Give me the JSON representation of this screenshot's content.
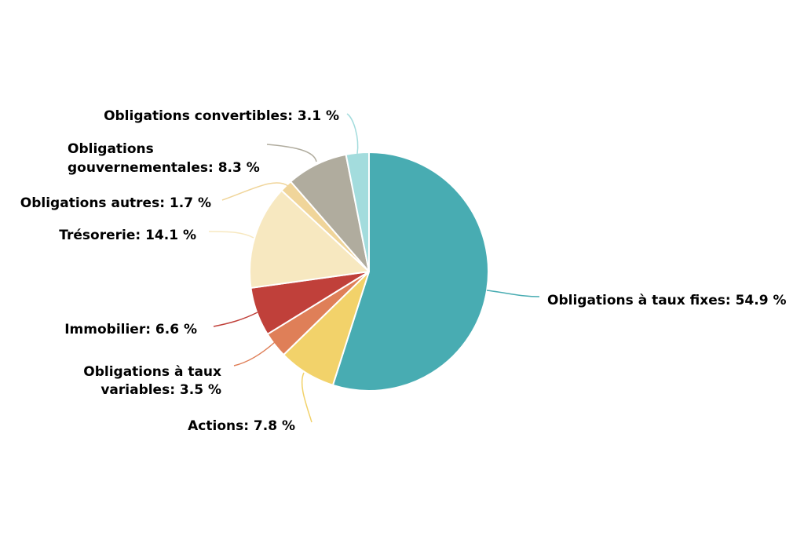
{
  "chart_data": {
    "type": "pie",
    "title": "",
    "slices": [
      {
        "label": "Obligations à taux fixes: 54.9 %",
        "lines": [
          "Obligations à taux fixes: 54.9 %"
        ],
        "value": 54.9,
        "color": "#48acb2"
      },
      {
        "label": "Actions: 7.8 %",
        "lines": [
          "Actions: 7.8 %"
        ],
        "value": 7.8,
        "color": "#f2d26a"
      },
      {
        "label": "Obligations à taux variables: 3.5 %",
        "lines": [
          "Obligations à taux",
          "variables: 3.5 %"
        ],
        "value": 3.5,
        "color": "#df7f58"
      },
      {
        "label": "Immobilier: 6.6 %",
        "lines": [
          "Immobilier: 6.6 %"
        ],
        "value": 6.6,
        "color": "#c0403a"
      },
      {
        "label": "Trésorerie: 14.1 %",
        "lines": [
          "Trésorerie: 14.1 %"
        ],
        "value": 14.1,
        "color": "#f7e8c0"
      },
      {
        "label": "Obligations autres: 1.7 %",
        "lines": [
          "Obligations autres: 1.7 %"
        ],
        "value": 1.7,
        "color": "#f0d59a"
      },
      {
        "label": "Obligations gouvernementales: 8.3 %",
        "lines": [
          "Obligations",
          "gouvernementales: 8.3 %"
        ],
        "value": 8.3,
        "color": "#b0ac9e"
      },
      {
        "label": "Obligations convertibles: 3.1 %",
        "lines": [
          "Obligations convertibles: 3.1 %"
        ],
        "value": 3.1,
        "color": "#a3dcdd"
      }
    ]
  }
}
